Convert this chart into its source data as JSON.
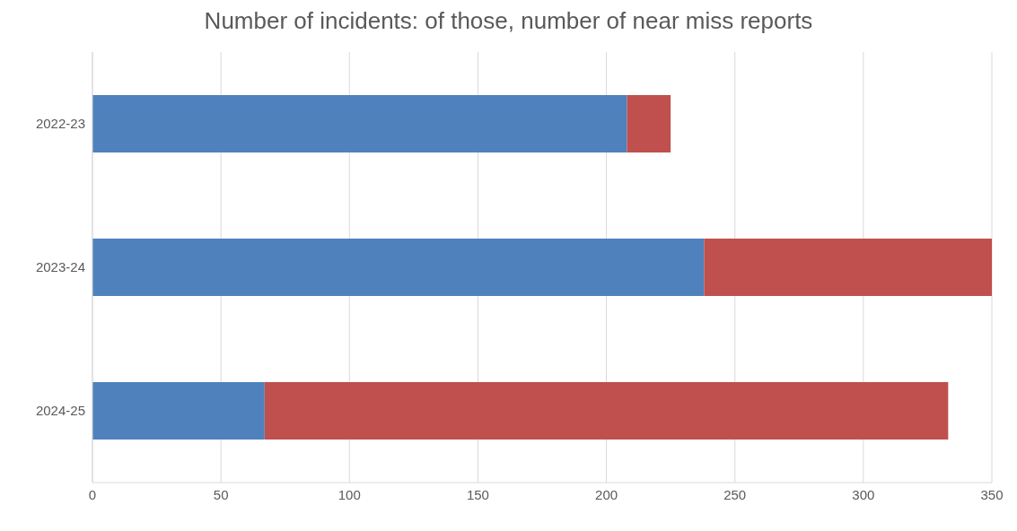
{
  "chart_data": {
    "type": "bar",
    "title": "Number of incidents: of those, number of near miss reports",
    "orientation": "horizontal",
    "stacked": true,
    "categories": [
      "2022-23",
      "2023-24",
      "2024-25"
    ],
    "series": [
      {
        "color": "#4f81bd",
        "values": [
          208,
          238,
          67
        ]
      },
      {
        "color": "#c0504d",
        "values": [
          17,
          112,
          266
        ]
      }
    ],
    "xlim": [
      0,
      350
    ],
    "xticks": [
      0,
      50,
      100,
      150,
      200,
      250,
      300,
      350
    ],
    "grid": "x"
  }
}
